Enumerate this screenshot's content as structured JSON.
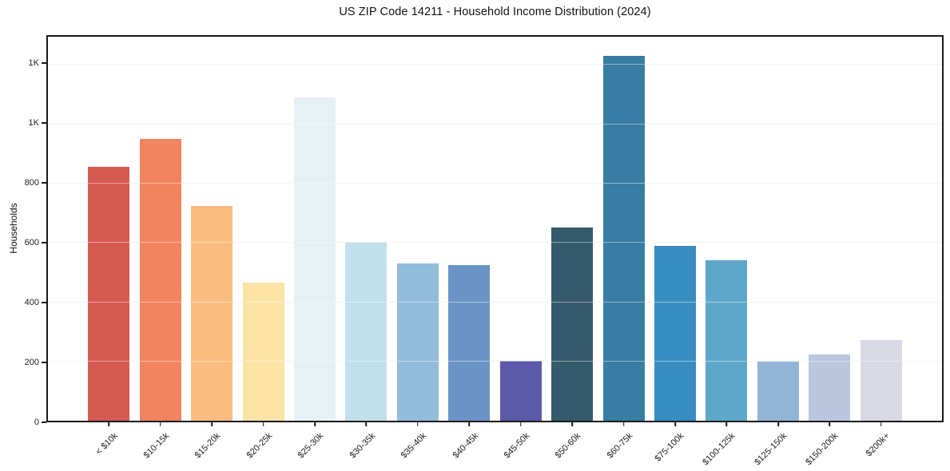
{
  "chart_data": {
    "type": "bar",
    "title": "US ZIP Code 14211 - Household Income Distribution (2024)",
    "xlabel": "",
    "ylabel": "Households",
    "ylim": [
      0,
      1294
    ],
    "grid": true,
    "legend": "none",
    "categories": [
      "< $10k",
      "$10-15k",
      "$15-20k",
      "$20-25k",
      "$25-30k",
      "$30-35k",
      "$35-40k",
      "$40-45k",
      "$45-50k",
      "$50-60k",
      "$60-75k",
      "$75-100k",
      "$100-125k",
      "$125-150k",
      "$150-200k",
      "$200k+"
    ],
    "values": [
      856,
      950,
      725,
      465,
      1090,
      602,
      530,
      524,
      203,
      650,
      1230,
      590,
      542,
      200,
      222,
      271
    ],
    "bar_colors": [
      "#d55a52",
      "#f2855f",
      "#fbbc80",
      "#fbe3a5",
      "#e6f1f5",
      "#c2e0ec",
      "#93bcdb",
      "#6b93c6",
      "#5c5aa8",
      "#355a6b",
      "#377da4",
      "#378dc1",
      "#5ea7c9",
      "#92b5d6",
      "#bac7df",
      "#d8d9e5"
    ],
    "yticks": [
      {
        "value": 0,
        "label": "0"
      },
      {
        "value": 200,
        "label": "200"
      },
      {
        "value": 400,
        "label": "400"
      },
      {
        "value": 600,
        "label": "600"
      },
      {
        "value": 800,
        "label": "800"
      },
      {
        "value": 1000,
        "label": "1K"
      },
      {
        "value": 1200,
        "label": "1K"
      }
    ],
    "colors": {
      "axis": "#1a1a1a",
      "gridline": "#ececec",
      "text": "#222222",
      "background": "#ffffff"
    }
  }
}
